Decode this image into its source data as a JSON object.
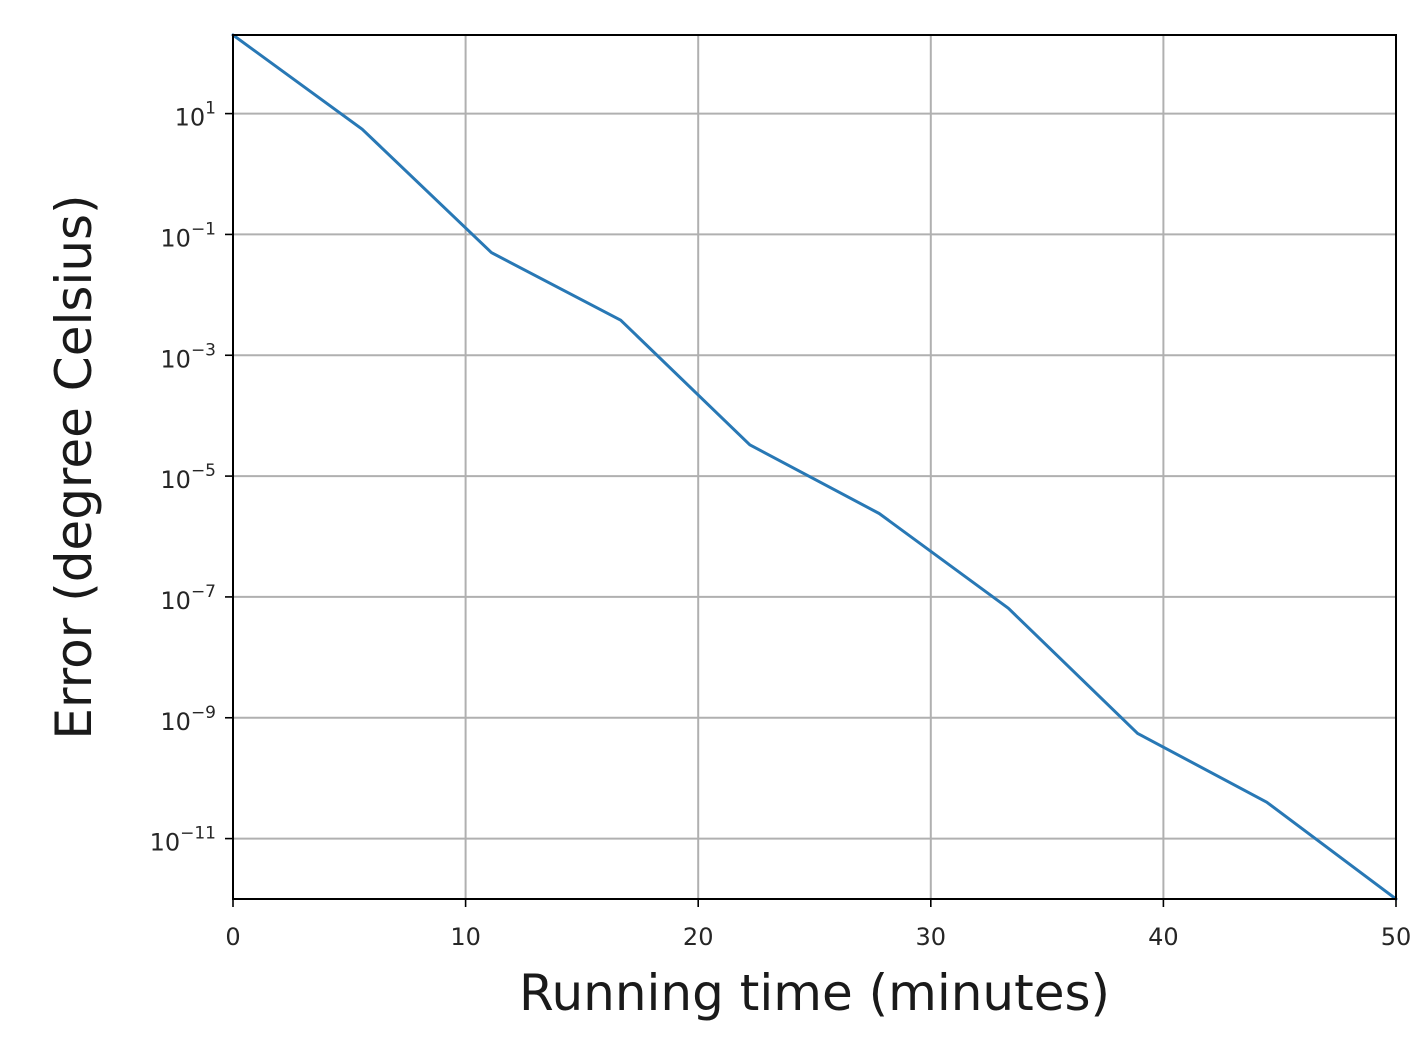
{
  "chart_data": {
    "type": "line",
    "xlabel": "Running time (minutes)",
    "ylabel": "Error (degree Celsius)",
    "xscale": "linear",
    "yscale": "log",
    "xlim": [
      0,
      50
    ],
    "ylim": [
      1e-12,
      200
    ],
    "grid": true,
    "legend": "none",
    "xticks": [
      {
        "value": 0,
        "label": "0"
      },
      {
        "value": 10,
        "label": "10"
      },
      {
        "value": 20,
        "label": "20"
      },
      {
        "value": 30,
        "label": "30"
      },
      {
        "value": 40,
        "label": "40"
      },
      {
        "value": 50,
        "label": "50"
      }
    ],
    "yticks": [
      {
        "value": 10,
        "base": "10",
        "exp": "1"
      },
      {
        "value": 0.1,
        "base": "10",
        "exp": "−1"
      },
      {
        "value": 0.001,
        "base": "10",
        "exp": "−3"
      },
      {
        "value": 1e-05,
        "base": "10",
        "exp": "−5"
      },
      {
        "value": 1e-07,
        "base": "10",
        "exp": "−7"
      },
      {
        "value": 1e-09,
        "base": "10",
        "exp": "−9"
      },
      {
        "value": 1e-11,
        "base": "10",
        "exp": "−11"
      }
    ],
    "series": [
      {
        "color": "#2878b5",
        "x": [
          0,
          5.56,
          11.11,
          16.67,
          22.22,
          27.78,
          33.33,
          38.89,
          44.44,
          50.0
        ],
        "y": [
          200,
          5.5,
          0.05,
          0.0038,
          3.3e-05,
          2.4e-06,
          6.5e-08,
          5.5e-10,
          4e-11,
          1e-12
        ]
      }
    ]
  }
}
